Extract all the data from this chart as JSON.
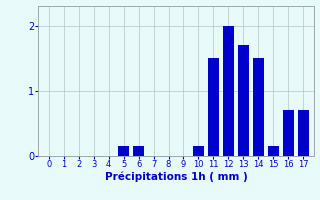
{
  "categories": [
    0,
    1,
    2,
    3,
    4,
    5,
    6,
    7,
    8,
    9,
    10,
    11,
    12,
    13,
    14,
    15,
    16,
    17
  ],
  "values": [
    0,
    0,
    0,
    0,
    0,
    0.15,
    0.15,
    0,
    0,
    0,
    0.15,
    1.5,
    2.0,
    1.7,
    1.5,
    0.15,
    0.7,
    0.7
  ],
  "bar_color": "#0000cc",
  "background_color": "#e8fafa",
  "grid_color": "#b0c8c8",
  "xlabel": "Précipitations 1h ( mm )",
  "ylim": [
    0,
    2.3
  ],
  "yticks": [
    0,
    1,
    2
  ],
  "xtick_fontsize": 6,
  "ytick_fontsize": 7,
  "xlabel_fontsize": 7.5
}
